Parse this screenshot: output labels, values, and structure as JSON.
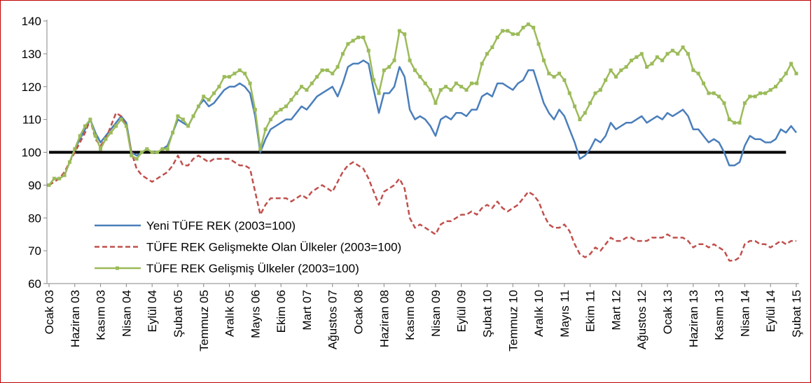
{
  "chart_data": {
    "type": "line",
    "categories": [
      "Ocak 03",
      null,
      null,
      null,
      null,
      "Haziran 03",
      null,
      null,
      null,
      null,
      "Kasım 03",
      null,
      null,
      null,
      null,
      "Nisan 04",
      null,
      null,
      null,
      null,
      "Eylül 04",
      null,
      null,
      null,
      null,
      "Şubat 05",
      null,
      null,
      null,
      null,
      "Temmuz 05",
      null,
      null,
      null,
      null,
      "Aralık 05",
      null,
      null,
      null,
      null,
      "Mayıs 06",
      null,
      null,
      null,
      null,
      "Ekim 06",
      null,
      null,
      null,
      null,
      "Mart 07",
      null,
      null,
      null,
      null,
      "Ağustos 07",
      null,
      null,
      null,
      null,
      "Ocak 08",
      null,
      null,
      null,
      null,
      "Haziran 08",
      null,
      null,
      null,
      null,
      "Kasım 08",
      null,
      null,
      null,
      null,
      "Nisan 09",
      null,
      null,
      null,
      null,
      "Eylül 09",
      null,
      null,
      null,
      null,
      "Şubat 10",
      null,
      null,
      null,
      null,
      "Temmuz 10",
      null,
      null,
      null,
      null,
      "Aralık 10",
      null,
      null,
      null,
      null,
      "Mayıs 11",
      null,
      null,
      null,
      null,
      "Ekim 11",
      null,
      null,
      null,
      null,
      "Mart 12",
      null,
      null,
      null,
      null,
      "Ağustos 12",
      null,
      null,
      null,
      null,
      "Ocak 13",
      null,
      null,
      null,
      null,
      "Haziran 13",
      null,
      null,
      null,
      null,
      "Kasım 13",
      null,
      null,
      null,
      null,
      "Nisan 14",
      null,
      null,
      null,
      null,
      "Eylül 14",
      null,
      null,
      null,
      null,
      "Şubat 15"
    ],
    "series": [
      {
        "name": "Yeni TÜFE REK (2003=100)",
        "color": "#4a7ebb",
        "style": "solid",
        "markers": false,
        "values": [
          90,
          92,
          92,
          93,
          97,
          101,
          104,
          107,
          110,
          106,
          103,
          105,
          107,
          109,
          111,
          109,
          100,
          99,
          100,
          101,
          100,
          100,
          101,
          102,
          106,
          110,
          109,
          108,
          111,
          114,
          116,
          114,
          115,
          117,
          119,
          120,
          120,
          121,
          120,
          118,
          111,
          100,
          104,
          107,
          108,
          109,
          110,
          110,
          112,
          114,
          113,
          115,
          117,
          118,
          119,
          120,
          117,
          121,
          126,
          127,
          127,
          128,
          127,
          119,
          112,
          118,
          118,
          120,
          126,
          123,
          113,
          110,
          111,
          110,
          108,
          105,
          110,
          111,
          110,
          112,
          112,
          111,
          113,
          113,
          117,
          118,
          117,
          121,
          121,
          120,
          119,
          121,
          122,
          125,
          125,
          120,
          115,
          112,
          110,
          113,
          111,
          107,
          103,
          98,
          99,
          101,
          104,
          103,
          105,
          109,
          107,
          108,
          109,
          109,
          110,
          111,
          109,
          110,
          111,
          110,
          112,
          111,
          112,
          113,
          111,
          107,
          107,
          105,
          103,
          104,
          103,
          100,
          96,
          96,
          97,
          102,
          105,
          104,
          104,
          103,
          103,
          104,
          107,
          106,
          108,
          106
        ]
      },
      {
        "name": "TÜFE REK Gelişmekte Olan Ülkeler (2003=100)",
        "color": "#c0504d",
        "style": "dashed",
        "markers": false,
        "values": [
          90,
          91,
          92,
          94,
          97,
          100,
          103,
          106,
          110,
          104,
          102,
          104,
          108,
          112,
          111,
          108,
          100,
          95,
          93,
          92,
          91,
          92,
          93,
          94,
          96,
          99,
          96,
          96,
          98,
          99,
          98,
          97,
          98,
          98,
          98,
          98,
          97,
          96,
          96,
          95,
          88,
          81,
          84,
          86,
          86,
          86,
          86,
          85,
          86,
          87,
          86,
          88,
          89,
          90,
          89,
          88,
          91,
          94,
          96,
          97,
          96,
          95,
          92,
          88,
          84,
          88,
          89,
          90,
          92,
          89,
          80,
          77,
          78,
          77,
          76,
          75,
          78,
          79,
          79,
          80,
          81,
          81,
          82,
          81,
          83,
          84,
          83,
          85,
          83,
          82,
          83,
          84,
          86,
          88,
          87,
          85,
          81,
          78,
          77,
          77,
          78,
          76,
          72,
          69,
          68,
          69,
          71,
          70,
          72,
          74,
          73,
          73,
          74,
          74,
          73,
          73,
          73,
          74,
          74,
          74,
          75,
          74,
          74,
          74,
          73,
          71,
          72,
          72,
          71,
          72,
          71,
          70,
          67,
          67,
          68,
          72,
          73,
          73,
          72,
          72,
          71,
          72,
          73,
          72,
          73,
          73
        ]
      },
      {
        "name": "TÜFE REK Gelişmiş Ülkeler (2003=100)",
        "color": "#9bbb59",
        "style": "solid",
        "markers": true,
        "values": [
          90,
          92,
          92,
          93,
          97,
          101,
          105,
          108,
          110,
          105,
          101,
          104,
          106,
          108,
          110,
          108,
          99,
          98,
          100,
          101,
          100,
          100,
          101,
          101,
          106,
          111,
          110,
          108,
          111,
          114,
          117,
          116,
          118,
          120,
          123,
          123,
          124,
          125,
          124,
          121,
          113,
          101,
          107,
          110,
          112,
          113,
          114,
          116,
          118,
          120,
          119,
          121,
          123,
          125,
          125,
          124,
          126,
          130,
          133,
          134,
          135,
          135,
          131,
          122,
          118,
          125,
          126,
          128,
          137,
          136,
          128,
          125,
          123,
          121,
          119,
          115,
          119,
          120,
          119,
          121,
          120,
          119,
          121,
          121,
          127,
          130,
          132,
          135,
          137,
          137,
          136,
          136,
          138,
          139,
          138,
          133,
          128,
          124,
          123,
          124,
          122,
          118,
          114,
          110,
          112,
          115,
          118,
          119,
          122,
          125,
          123,
          125,
          126,
          128,
          129,
          130,
          126,
          127,
          129,
          128,
          130,
          131,
          130,
          132,
          130,
          125,
          124,
          121,
          118,
          118,
          117,
          115,
          110,
          109,
          109,
          115,
          117,
          117,
          118,
          118,
          119,
          120,
          122,
          124,
          127,
          124
        ]
      }
    ],
    "reference_line": {
      "value": 100,
      "color": "#000000"
    },
    "ylim": [
      60,
      140
    ],
    "yticks": [
      60,
      70,
      80,
      90,
      100,
      110,
      120,
      130,
      140
    ],
    "grid": false,
    "legend": "lower-left"
  }
}
